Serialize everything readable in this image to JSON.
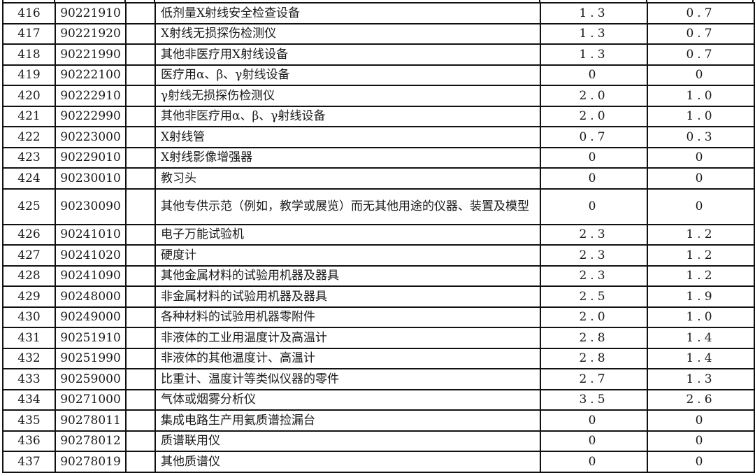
{
  "table": {
    "rows": [
      {
        "no": "416",
        "code": "90221910",
        "extra": "",
        "name": "低剂量X射线安全检查设备",
        "v1": "1.3",
        "v2": "0.7"
      },
      {
        "no": "417",
        "code": "90221920",
        "extra": "",
        "name": "X射线无损探伤检测仪",
        "v1": "1.3",
        "v2": "0.7"
      },
      {
        "no": "418",
        "code": "90221990",
        "extra": "",
        "name": "其他非医疗用X射线设备",
        "v1": "1.3",
        "v2": "0.7"
      },
      {
        "no": "419",
        "code": "90222100",
        "extra": "",
        "name": "医疗用α、β、γ射线设备",
        "v1": "0",
        "v2": "0"
      },
      {
        "no": "420",
        "code": "90222910",
        "extra": "",
        "name": "γ射线无损探伤检测仪",
        "v1": "2.0",
        "v2": "1.0"
      },
      {
        "no": "421",
        "code": "90222990",
        "extra": "",
        "name": "其他非医疗用α、β、γ射线设备",
        "v1": "2.0",
        "v2": "1.0"
      },
      {
        "no": "422",
        "code": "90223000",
        "extra": "",
        "name": "X射线管",
        "v1": "0.7",
        "v2": "0.3"
      },
      {
        "no": "423",
        "code": "90229010",
        "extra": "",
        "name": "X射线影像增强器",
        "v1": "0",
        "v2": "0"
      },
      {
        "no": "424",
        "code": "90230010",
        "extra": "",
        "name": "教习头",
        "v1": "0",
        "v2": "0"
      },
      {
        "no": "425",
        "code": "90230090",
        "extra": "",
        "name": "其他专供示范（例如，教学或展览）而无其他用途的仪器、装置及模型",
        "v1": "0",
        "v2": "0"
      },
      {
        "no": "426",
        "code": "90241010",
        "extra": "",
        "name": "电子万能试验机",
        "v1": "2.3",
        "v2": "1.2"
      },
      {
        "no": "427",
        "code": "90241020",
        "extra": "",
        "name": "硬度计",
        "v1": "2.3",
        "v2": "1.2"
      },
      {
        "no": "428",
        "code": "90241090",
        "extra": "",
        "name": "其他金属材料的试验用机器及器具",
        "v1": "2.3",
        "v2": "1.2"
      },
      {
        "no": "429",
        "code": "90248000",
        "extra": "",
        "name": "非金属材料的试验用机器及器具",
        "v1": "2.5",
        "v2": "1.9"
      },
      {
        "no": "430",
        "code": "90249000",
        "extra": "",
        "name": "各种材料的试验用机器零附件",
        "v1": "2.0",
        "v2": "1.0"
      },
      {
        "no": "431",
        "code": "90251910",
        "extra": "",
        "name": "非液体的工业用温度计及高温计",
        "v1": "2.8",
        "v2": "1.4"
      },
      {
        "no": "432",
        "code": "90251990",
        "extra": "",
        "name": "非液体的其他温度计、高温计",
        "v1": "2.8",
        "v2": "1.4"
      },
      {
        "no": "433",
        "code": "90259000",
        "extra": "",
        "name": "比重计、温度计等类似仪器的零件",
        "v1": "2.7",
        "v2": "1.3"
      },
      {
        "no": "434",
        "code": "90271000",
        "extra": "",
        "name": "气体或烟雾分析仪",
        "v1": "3.5",
        "v2": "2.6"
      },
      {
        "no": "435",
        "code": "90278011",
        "extra": "",
        "name": "集成电路生产用氦质谱捡漏台",
        "v1": "0",
        "v2": "0"
      },
      {
        "no": "436",
        "code": "90278012",
        "extra": "",
        "name": "质谱联用仪",
        "v1": "0",
        "v2": "0"
      },
      {
        "no": "437",
        "code": "90278019",
        "extra": "",
        "name": "其他质谱仪",
        "v1": "0",
        "v2": "0"
      }
    ]
  }
}
